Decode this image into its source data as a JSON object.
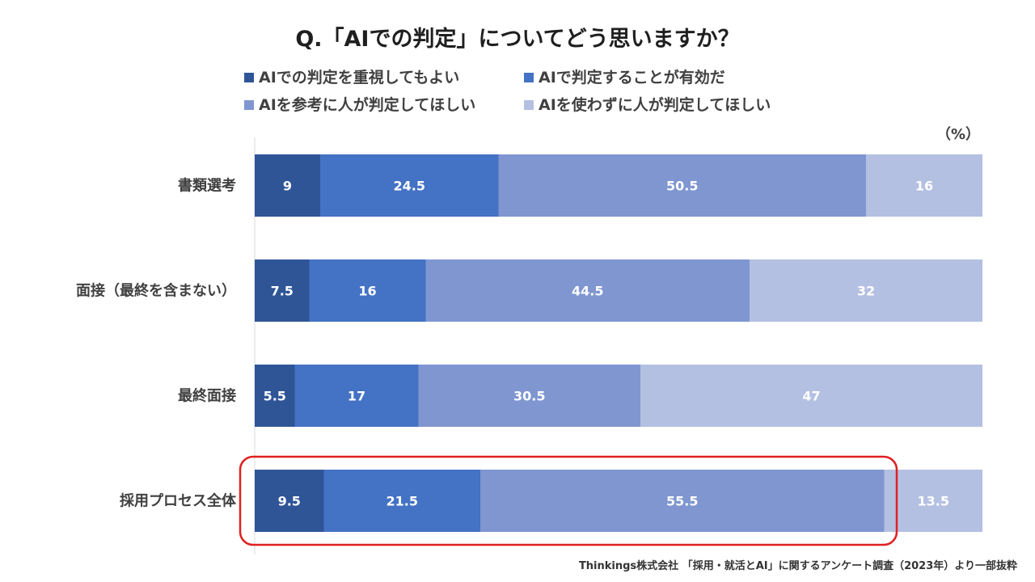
{
  "chart_data": {
    "type": "bar",
    "orientation": "horizontal",
    "stacked": true,
    "title": "Q.「AIでの判定」についてどう思いますか？",
    "unit_label": "（%）",
    "categories": [
      "書類選考",
      "面接（最終を含まない）",
      "最終面接",
      "採用プロセス全体"
    ],
    "series": [
      {
        "name": "AIでの判定を重視してもよい",
        "color": "#2f5597",
        "label_color": "#ffffff",
        "values": [
          9,
          7.5,
          5.5,
          9.5
        ]
      },
      {
        "name": "AIで判定することが有効だ",
        "color": "#4472c4",
        "label_color": "#ffffff",
        "values": [
          24.5,
          16,
          17,
          21.5
        ]
      },
      {
        "name": "AIを参考に人が判定してほしい",
        "color": "#7f96d1",
        "label_color": "#ffffff",
        "values": [
          50.5,
          44.5,
          30.5,
          55.5
        ]
      },
      {
        "name": "AIを使わずに人が判定してほしい",
        "color": "#b4c0e2",
        "label_color": "#ffffff",
        "values": [
          16,
          32,
          47,
          13.5
        ]
      }
    ],
    "xlim": [
      0,
      100
    ],
    "legend_position": "top",
    "grid": false,
    "highlight": {
      "category": "採用プロセス全体",
      "color": "#e02020"
    },
    "source": "Thinkings株式会社 「採用・就活とAI」に関するアンケート調査（2023年）より一部抜粋"
  }
}
